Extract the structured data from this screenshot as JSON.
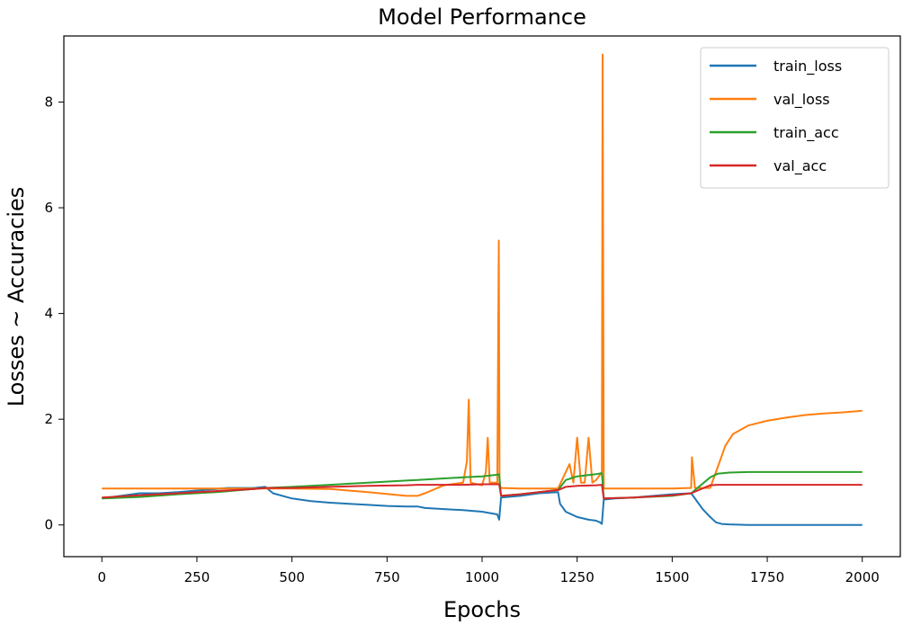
{
  "chart_data": {
    "type": "line",
    "title": "Model Performance",
    "xlabel": "Epochs",
    "ylabel": "Losses ~ Accuracies",
    "xlim": [
      -100,
      2100
    ],
    "ylim": [
      -0.6,
      9.25
    ],
    "xticks": [
      0,
      250,
      500,
      750,
      1000,
      1250,
      1500,
      1750,
      2000
    ],
    "yticks": [
      0,
      2,
      4,
      6,
      8
    ],
    "grid": false,
    "legend_position": "top-right",
    "series": [
      {
        "name": "train_loss",
        "color": "#1f77b4",
        "x": [
          0,
          50,
          100,
          150,
          200,
          250,
          300,
          330,
          400,
          430,
          450,
          500,
          550,
          600,
          650,
          700,
          750,
          800,
          830,
          850,
          900,
          950,
          1000,
          1040,
          1045,
          1050,
          1100,
          1150,
          1200,
          1205,
          1220,
          1250,
          1280,
          1300,
          1310,
          1315,
          1320,
          1350,
          1400,
          1450,
          1500,
          1550,
          1580,
          1600,
          1615,
          1630,
          1650,
          1700,
          1800,
          1900,
          2000
        ],
        "y": [
          0.5,
          0.55,
          0.6,
          0.6,
          0.62,
          0.65,
          0.68,
          0.7,
          0.7,
          0.72,
          0.6,
          0.5,
          0.45,
          0.42,
          0.4,
          0.38,
          0.36,
          0.35,
          0.35,
          0.32,
          0.3,
          0.28,
          0.25,
          0.2,
          0.1,
          0.52,
          0.55,
          0.6,
          0.62,
          0.4,
          0.25,
          0.15,
          0.1,
          0.08,
          0.05,
          0.02,
          0.48,
          0.5,
          0.52,
          0.55,
          0.58,
          0.6,
          0.3,
          0.15,
          0.05,
          0.02,
          0.01,
          0.0,
          0.0,
          0.0,
          0.0
        ]
      },
      {
        "name": "val_loss",
        "color": "#ff7f0e",
        "x": [
          0,
          100,
          200,
          300,
          400,
          430,
          500,
          600,
          700,
          800,
          830,
          850,
          900,
          950,
          960,
          965,
          970,
          1000,
          1010,
          1015,
          1020,
          1040,
          1044,
          1046,
          1050,
          1100,
          1200,
          1230,
          1240,
          1250,
          1260,
          1270,
          1280,
          1290,
          1300,
          1315,
          1317,
          1320,
          1400,
          1500,
          1550,
          1552,
          1560,
          1600,
          1620,
          1640,
          1660,
          1700,
          1750,
          1800,
          1850,
          1900,
          1950,
          2000
        ],
        "y": [
          0.69,
          0.69,
          0.69,
          0.69,
          0.69,
          0.69,
          0.69,
          0.68,
          0.62,
          0.55,
          0.55,
          0.6,
          0.75,
          0.8,
          1.2,
          2.37,
          0.8,
          0.75,
          1.0,
          1.65,
          0.8,
          0.8,
          5.38,
          0.75,
          0.7,
          0.69,
          0.69,
          1.15,
          0.8,
          1.65,
          0.8,
          0.8,
          1.65,
          0.8,
          0.85,
          1.0,
          8.9,
          0.69,
          0.69,
          0.69,
          0.7,
          1.28,
          0.7,
          0.7,
          1.1,
          1.5,
          1.72,
          1.88,
          1.97,
          2.03,
          2.08,
          2.11,
          2.13,
          2.16
        ]
      },
      {
        "name": "train_acc",
        "color": "#2ca02c",
        "x": [
          0,
          100,
          200,
          300,
          400,
          430,
          500,
          600,
          700,
          800,
          830,
          850,
          900,
          950,
          1000,
          1040,
          1045,
          1050,
          1100,
          1150,
          1200,
          1220,
          1250,
          1300,
          1315,
          1320,
          1400,
          1500,
          1550,
          1600,
          1620,
          1650,
          1700,
          1800,
          1900,
          2000
        ],
        "y": [
          0.5,
          0.53,
          0.58,
          0.62,
          0.68,
          0.7,
          0.72,
          0.76,
          0.8,
          0.84,
          0.85,
          0.86,
          0.88,
          0.9,
          0.92,
          0.95,
          0.96,
          0.55,
          0.58,
          0.62,
          0.66,
          0.85,
          0.92,
          0.96,
          0.98,
          0.5,
          0.52,
          0.55,
          0.6,
          0.9,
          0.97,
          0.99,
          1.0,
          1.0,
          1.0,
          1.0
        ]
      },
      {
        "name": "val_acc",
        "color": "#d62728",
        "x": [
          0,
          100,
          200,
          300,
          400,
          430,
          500,
          600,
          700,
          800,
          830,
          850,
          900,
          950,
          1000,
          1040,
          1045,
          1050,
          1100,
          1150,
          1200,
          1220,
          1250,
          1300,
          1315,
          1320,
          1400,
          1500,
          1550,
          1600,
          1620,
          1650,
          1700,
          1800,
          1900,
          2000
        ],
        "y": [
          0.52,
          0.56,
          0.6,
          0.64,
          0.68,
          0.7,
          0.7,
          0.72,
          0.74,
          0.75,
          0.76,
          0.76,
          0.76,
          0.76,
          0.77,
          0.77,
          0.77,
          0.55,
          0.58,
          0.62,
          0.66,
          0.72,
          0.74,
          0.75,
          0.76,
          0.5,
          0.52,
          0.56,
          0.6,
          0.75,
          0.76,
          0.76,
          0.76,
          0.76,
          0.76,
          0.76
        ]
      }
    ]
  }
}
